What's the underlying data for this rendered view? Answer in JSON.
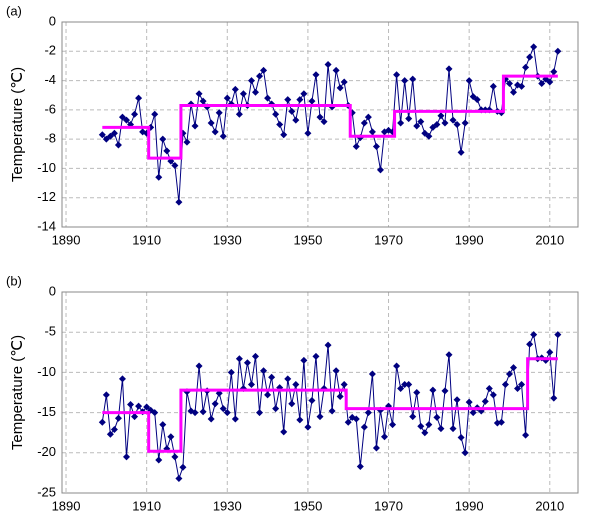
{
  "chart_data": [
    {
      "type": "line",
      "label": "(a)",
      "ylabel": "Temperature (℃)",
      "xlim": [
        1889,
        2017
      ],
      "xticks": [
        1890,
        1910,
        1930,
        1950,
        1970,
        1990,
        2010
      ],
      "ylim": [
        -14,
        0
      ],
      "yticks": [
        -14,
        -12,
        -10,
        -8,
        -6,
        -4,
        -2,
        0
      ],
      "grid": true,
      "series": [
        {
          "color": "#000080",
          "marker": "diamond",
          "x": [
            1899,
            1900,
            1901,
            1902,
            1903,
            1904,
            1905,
            1906,
            1907,
            1908,
            1909,
            1910,
            1911,
            1912,
            1913,
            1914,
            1915,
            1916,
            1917,
            1918,
            1919,
            1920,
            1921,
            1922,
            1923,
            1924,
            1925,
            1926,
            1927,
            1928,
            1929,
            1930,
            1931,
            1932,
            1933,
            1934,
            1935,
            1936,
            1937,
            1938,
            1939,
            1940,
            1941,
            1942,
            1943,
            1944,
            1945,
            1946,
            1947,
            1948,
            1949,
            1950,
            1951,
            1952,
            1953,
            1954,
            1955,
            1956,
            1957,
            1958,
            1959,
            1960,
            1961,
            1962,
            1963,
            1964,
            1965,
            1966,
            1967,
            1968,
            1969,
            1970,
            1971,
            1972,
            1973,
            1974,
            1975,
            1976,
            1977,
            1978,
            1979,
            1980,
            1981,
            1982,
            1983,
            1984,
            1985,
            1986,
            1987,
            1988,
            1989,
            1990,
            1991,
            1992,
            1993,
            1994,
            1995,
            1996,
            1997,
            1998,
            1999,
            2000,
            2001,
            2002,
            2003,
            2004,
            2005,
            2006,
            2007,
            2008,
            2009,
            2010,
            2011,
            2012
          ],
          "values": [
            -7.7,
            -8.0,
            -7.8,
            -7.6,
            -8.4,
            -6.5,
            -6.7,
            -7.0,
            -6.3,
            -5.2,
            -7.5,
            -7.6,
            -7.2,
            -6.3,
            -10.6,
            -8.0,
            -8.8,
            -9.5,
            -9.8,
            -12.3,
            -7.6,
            -8.2,
            -5.6,
            -7.1,
            -4.9,
            -5.4,
            -5.8,
            -6.9,
            -7.5,
            -6.2,
            -7.8,
            -5.2,
            -5.6,
            -4.6,
            -6.3,
            -4.9,
            -5.7,
            -4.0,
            -4.8,
            -3.7,
            -3.3,
            -5.2,
            -5.6,
            -6.3,
            -7.0,
            -7.7,
            -5.3,
            -6.1,
            -6.7,
            -5.3,
            -4.9,
            -7.6,
            -5.4,
            -3.6,
            -6.5,
            -6.8,
            -2.9,
            -5.8,
            -3.3,
            -4.5,
            -4.1,
            -5.7,
            -6.2,
            -8.5,
            -7.9,
            -6.9,
            -6.5,
            -7.5,
            -8.5,
            -10.1,
            -7.5,
            -7.4,
            -7.5,
            -3.6,
            -6.9,
            -4.0,
            -6.6,
            -3.9,
            -7.1,
            -6.8,
            -7.6,
            -7.8,
            -7.2,
            -7.0,
            -6.4,
            -6.9,
            -3.2,
            -6.7,
            -7.0,
            -8.9,
            -6.9,
            -4.0,
            -5.1,
            -5.3,
            -6.0,
            -6.0,
            -6.0,
            -4.4,
            -6.1,
            -6.2,
            -3.9,
            -4.2,
            -4.8,
            -4.3,
            -4.4,
            -3.1,
            -2.4,
            -1.7,
            -3.7,
            -4.2,
            -3.9,
            -4.1,
            -3.4,
            -2.0
          ]
        },
        {
          "color": "#ff00ff",
          "x": [
            1899,
            1910.5,
            1910.5,
            1918.5,
            1918.5,
            1960.5,
            1960.5,
            1971.5,
            1971.5,
            1998.5,
            1998.5,
            2012
          ],
          "values": [
            -7.2,
            -7.2,
            -9.3,
            -9.3,
            -5.7,
            -5.7,
            -7.8,
            -7.8,
            -6.1,
            -6.1,
            -3.7,
            -3.7
          ]
        }
      ]
    },
    {
      "type": "line",
      "label": "(b)",
      "ylabel": "Temperature (℃)",
      "xlim": [
        1889,
        2017
      ],
      "xticks": [
        1890,
        1910,
        1930,
        1950,
        1970,
        1990,
        2010
      ],
      "ylim": [
        -25,
        0
      ],
      "yticks": [
        -25,
        -20,
        -15,
        -10,
        -5,
        0
      ],
      "grid": true,
      "series": [
        {
          "color": "#000080",
          "marker": "diamond",
          "x": [
            1899,
            1900,
            1901,
            1902,
            1903,
            1904,
            1905,
            1906,
            1907,
            1908,
            1909,
            1910,
            1911,
            1912,
            1913,
            1914,
            1915,
            1916,
            1917,
            1918,
            1919,
            1920,
            1921,
            1922,
            1923,
            1924,
            1925,
            1926,
            1927,
            1928,
            1929,
            1930,
            1931,
            1932,
            1933,
            1934,
            1935,
            1936,
            1937,
            1938,
            1939,
            1940,
            1941,
            1942,
            1943,
            1944,
            1945,
            1946,
            1947,
            1948,
            1949,
            1950,
            1951,
            1952,
            1953,
            1954,
            1955,
            1956,
            1957,
            1958,
            1959,
            1960,
            1961,
            1962,
            1963,
            1964,
            1965,
            1966,
            1967,
            1968,
            1969,
            1970,
            1971,
            1972,
            1973,
            1974,
            1975,
            1976,
            1977,
            1978,
            1979,
            1980,
            1981,
            1982,
            1983,
            1984,
            1985,
            1986,
            1987,
            1988,
            1989,
            1990,
            1991,
            1992,
            1993,
            1994,
            1995,
            1996,
            1997,
            1998,
            1999,
            2000,
            2001,
            2002,
            2003,
            2004,
            2005,
            2006,
            2007,
            2008,
            2009,
            2010,
            2011,
            2012
          ],
          "values": [
            -16.2,
            -12.8,
            -17.7,
            -17.1,
            -15.7,
            -10.8,
            -20.5,
            -14.0,
            -15.5,
            -14.2,
            -14.9,
            -14.3,
            -14.7,
            -15.0,
            -20.9,
            -16.5,
            -19.5,
            -18.0,
            -20.5,
            -23.2,
            -21.8,
            -12.4,
            -14.8,
            -15.0,
            -9.2,
            -14.9,
            -12.3,
            -15.8,
            -13.9,
            -12.6,
            -14.5,
            -15.0,
            -10.0,
            -15.8,
            -8.3,
            -12.0,
            -8.8,
            -11.5,
            -8.0,
            -15.0,
            -9.8,
            -12.8,
            -10.6,
            -14.5,
            -11.9,
            -17.4,
            -10.8,
            -13.9,
            -11.5,
            -15.9,
            -8.5,
            -16.8,
            -13.5,
            -8.0,
            -15.5,
            -12.0,
            -6.6,
            -14.8,
            -9.8,
            -13.0,
            -11.5,
            -16.2,
            -15.6,
            -15.8,
            -21.7,
            -16.8,
            -15.0,
            -10.2,
            -19.4,
            -14.7,
            -18.0,
            -14.2,
            -16.5,
            -9.2,
            -12.0,
            -11.5,
            -11.5,
            -15.5,
            -12.5,
            -16.7,
            -17.5,
            -16.5,
            -12.2,
            -15.6,
            -17.0,
            -12.3,
            -7.8,
            -17.0,
            -13.4,
            -18.1,
            -20.0,
            -13.7,
            -15.0,
            -14.4,
            -14.8,
            -13.6,
            -12.0,
            -12.8,
            -16.3,
            -16.2,
            -11.5,
            -10.2,
            -9.4,
            -12.0,
            -11.5,
            -17.8,
            -6.5,
            -5.3,
            -8.3,
            -8.2,
            -8.5,
            -7.5,
            -13.2,
            -5.3
          ]
        },
        {
          "color": "#ff00ff",
          "x": [
            1899,
            1910.5,
            1910.5,
            1918.5,
            1918.5,
            1959.5,
            1959.5,
            2004.5,
            2004.5,
            2012
          ],
          "values": [
            -15,
            -15,
            -19.8,
            -19.8,
            -12.2,
            -12.2,
            -14.5,
            -14.5,
            -8.3,
            -8.3
          ]
        }
      ]
    }
  ]
}
